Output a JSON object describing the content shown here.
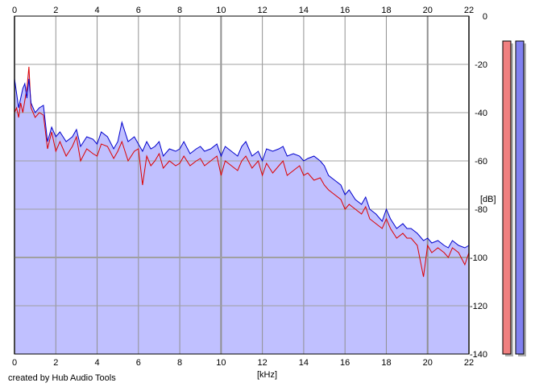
{
  "chart_data": {
    "type": "line",
    "title": "",
    "xlabel": "[kHz]",
    "ylabel": "[dB]",
    "xlim": [
      0,
      22
    ],
    "ylim": [
      -140,
      0
    ],
    "x_ticks": [
      0,
      2,
      4,
      6,
      8,
      10,
      12,
      14,
      16,
      18,
      20,
      22
    ],
    "x_tick_labels": [
      "0",
      "2",
      "4",
      "6",
      "8",
      "10",
      "12",
      "14",
      "16",
      "18",
      "20",
      "22"
    ],
    "y_ticks": [
      0,
      -20,
      -40,
      -60,
      -80,
      -100,
      -120,
      -140
    ],
    "y_tick_labels": [
      "0",
      "-20",
      "-40",
      "-60",
      "-80",
      "-100",
      "-120",
      "-140"
    ],
    "grid": true,
    "fill_color": "#c0c0ff",
    "series": [
      {
        "color": "#dd0000",
        "x": [
          0,
          0.1,
          0.2,
          0.3,
          0.4,
          0.5,
          0.6,
          0.7,
          0.8,
          1.0,
          1.2,
          1.4,
          1.6,
          1.8,
          2.0,
          2.2,
          2.5,
          2.8,
          3.0,
          3.2,
          3.5,
          3.8,
          4.0,
          4.2,
          4.5,
          4.8,
          5.0,
          5.2,
          5.5,
          5.8,
          6.0,
          6.2,
          6.4,
          6.6,
          6.8,
          7.0,
          7.2,
          7.5,
          7.8,
          8.0,
          8.2,
          8.5,
          8.8,
          9.0,
          9.2,
          9.5,
          9.8,
          10.0,
          10.2,
          10.5,
          10.8,
          11.0,
          11.2,
          11.5,
          11.8,
          12.0,
          12.2,
          12.5,
          12.8,
          13.0,
          13.2,
          13.5,
          13.8,
          14.0,
          14.2,
          14.5,
          14.8,
          15.0,
          15.2,
          15.5,
          15.8,
          16.0,
          16.2,
          16.5,
          16.8,
          17.0,
          17.2,
          17.5,
          17.8,
          18.0,
          18.2,
          18.5,
          18.8,
          19.0,
          19.2,
          19.5,
          19.8,
          20.0,
          20.2,
          20.5,
          20.8,
          21.0,
          21.2,
          21.5,
          21.8,
          22.0
        ],
        "y": [
          -40,
          -38,
          -42,
          -36,
          -40,
          -35,
          -30,
          -21,
          -38,
          -42,
          -40,
          -41,
          -55,
          -48,
          -56,
          -52,
          -58,
          -54,
          -50,
          -60,
          -55,
          -57,
          -58,
          -53,
          -54,
          -59,
          -56,
          -52,
          -60,
          -56,
          -55,
          -70,
          -58,
          -62,
          -60,
          -57,
          -63,
          -60,
          -62,
          -61,
          -58,
          -62,
          -60,
          -59,
          -62,
          -60,
          -58,
          -66,
          -60,
          -62,
          -64,
          -60,
          -58,
          -63,
          -60,
          -66,
          -61,
          -65,
          -62,
          -60,
          -66,
          -64,
          -62,
          -66,
          -65,
          -68,
          -67,
          -70,
          -72,
          -74,
          -76,
          -80,
          -78,
          -80,
          -82,
          -79,
          -84,
          -86,
          -88,
          -84,
          -88,
          -92,
          -90,
          -92,
          -92,
          -95,
          -108,
          -95,
          -98,
          -96,
          -98,
          -100,
          -96,
          -98,
          -103,
          -98
        ]
      },
      {
        "color": "#0000cc",
        "x": [
          0,
          0.1,
          0.2,
          0.3,
          0.4,
          0.5,
          0.6,
          0.7,
          0.8,
          1.0,
          1.2,
          1.4,
          1.6,
          1.8,
          2.0,
          2.2,
          2.5,
          2.8,
          3.0,
          3.2,
          3.5,
          3.8,
          4.0,
          4.2,
          4.5,
          4.8,
          5.0,
          5.2,
          5.5,
          5.8,
          6.0,
          6.2,
          6.4,
          6.6,
          6.8,
          7.0,
          7.2,
          7.5,
          7.8,
          8.0,
          8.2,
          8.5,
          8.8,
          9.0,
          9.2,
          9.5,
          9.8,
          10.0,
          10.2,
          10.5,
          10.8,
          11.0,
          11.2,
          11.5,
          11.8,
          12.0,
          12.2,
          12.5,
          12.8,
          13.0,
          13.2,
          13.5,
          13.8,
          14.0,
          14.2,
          14.5,
          14.8,
          15.0,
          15.2,
          15.5,
          15.8,
          16.0,
          16.2,
          16.5,
          16.8,
          17.0,
          17.2,
          17.5,
          17.8,
          18.0,
          18.2,
          18.5,
          18.8,
          19.0,
          19.2,
          19.5,
          19.8,
          20.0,
          20.2,
          20.5,
          20.8,
          21.0,
          21.2,
          21.5,
          21.8,
          22.0
        ],
        "y": [
          -26,
          -32,
          -38,
          -34,
          -30,
          -28,
          -34,
          -26,
          -36,
          -40,
          -38,
          -37,
          -52,
          -46,
          -50,
          -48,
          -52,
          -50,
          -47,
          -54,
          -50,
          -51,
          -53,
          -48,
          -50,
          -55,
          -52,
          -44,
          -52,
          -50,
          -53,
          -56,
          -52,
          -55,
          -54,
          -52,
          -58,
          -55,
          -56,
          -55,
          -52,
          -57,
          -55,
          -54,
          -56,
          -55,
          -53,
          -58,
          -54,
          -56,
          -58,
          -54,
          -52,
          -58,
          -56,
          -60,
          -55,
          -56,
          -55,
          -54,
          -58,
          -57,
          -58,
          -60,
          -59,
          -58,
          -60,
          -62,
          -66,
          -68,
          -70,
          -74,
          -72,
          -76,
          -78,
          -75,
          -80,
          -82,
          -85,
          -80,
          -84,
          -88,
          -86,
          -88,
          -88,
          -90,
          -93,
          -92,
          -94,
          -93,
          -95,
          -96,
          -93,
          -95,
          -96,
          -95
        ]
      }
    ],
    "meters": [
      {
        "color": "#f08080",
        "level": 0.0
      },
      {
        "color": "#8080f0",
        "level": 0.0
      }
    ],
    "credit": "created by Hub Audio Tools"
  }
}
